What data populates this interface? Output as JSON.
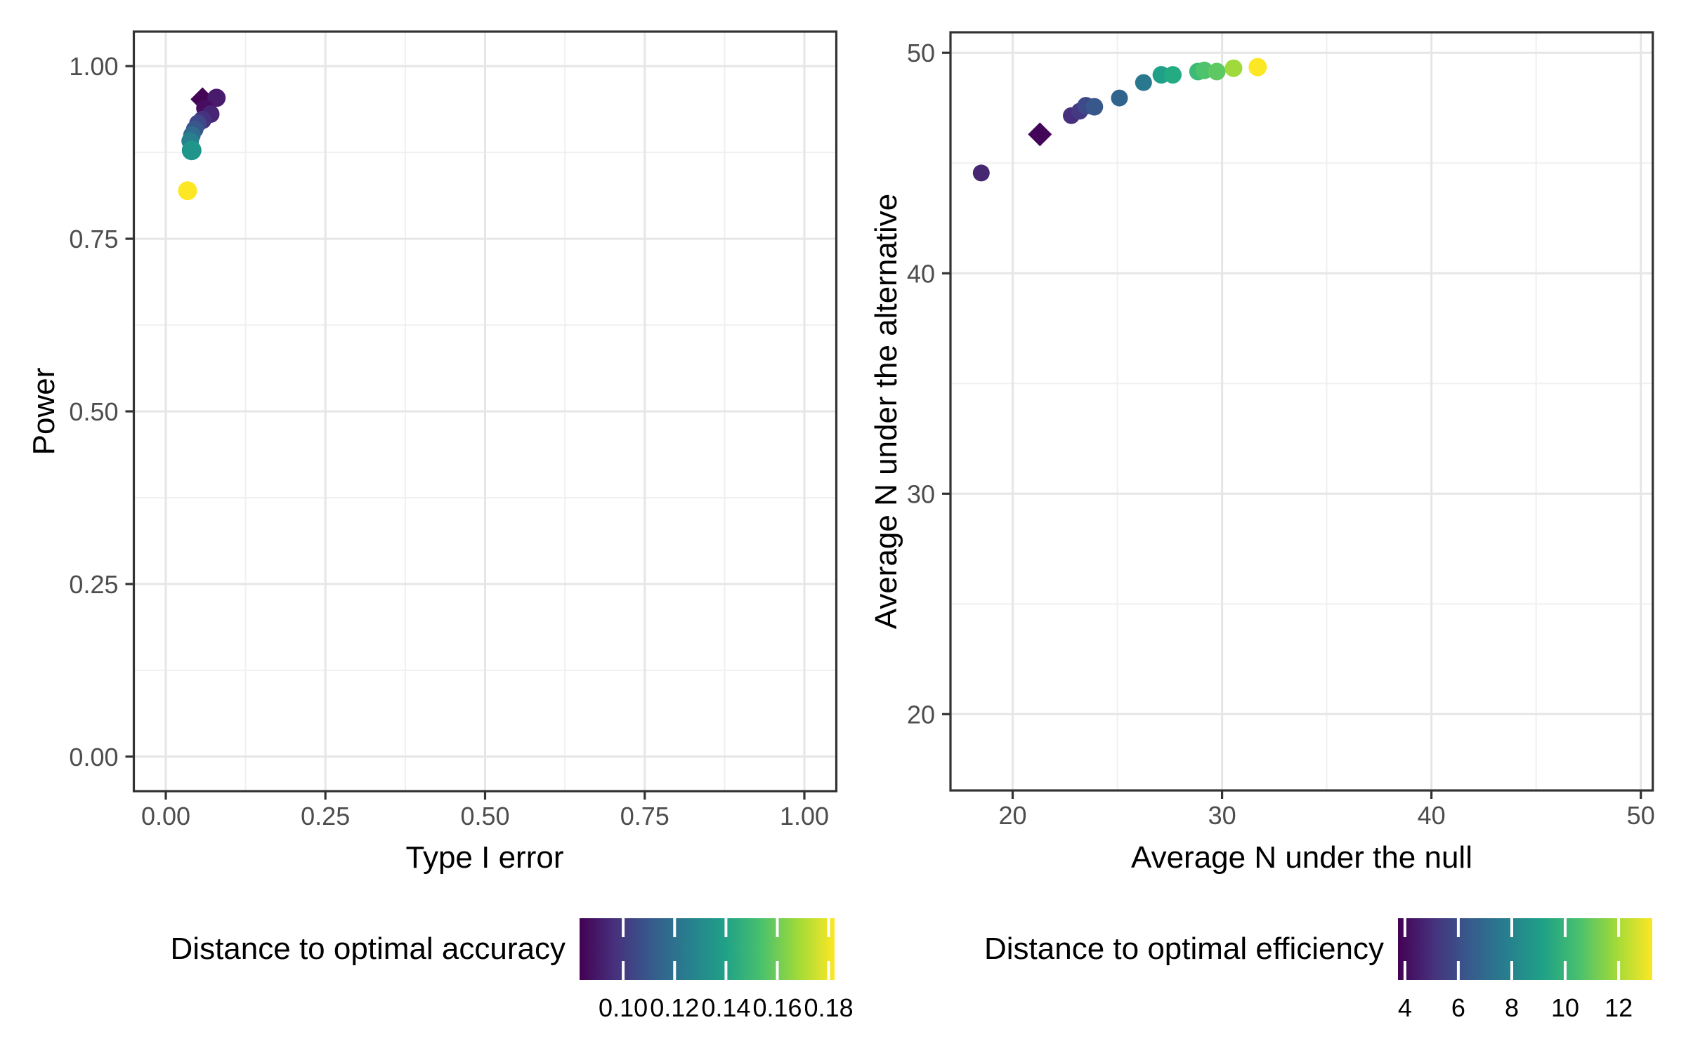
{
  "styles": {
    "background": "#ffffff",
    "grid_major": "#e6e6e6",
    "grid_minor": "#f0f0f0",
    "panel_border": "#333333",
    "tick_color": "#333333",
    "tick_label_color": "#4d4d4d",
    "axis_title_color": "#000000",
    "legend_label_color": "#000000",
    "viridis": [
      "#440154",
      "#46327e",
      "#365c8d",
      "#277f8e",
      "#1fa187",
      "#4ac16d",
      "#a0da39",
      "#fde725"
    ]
  },
  "chart_data": [
    {
      "type": "scatter",
      "panel": "left",
      "xlabel": "Type I error",
      "ylabel": "Power",
      "xlim": [
        -0.05,
        1.05
      ],
      "ylim": [
        -0.05,
        1.05
      ],
      "grid": true,
      "x_ticks": {
        "values": [
          0,
          0.25,
          0.5,
          0.75,
          1.0
        ],
        "labels": [
          "0.00",
          "0.25",
          "0.50",
          "0.75",
          "1.00"
        ]
      },
      "y_ticks": {
        "values": [
          0,
          0.25,
          0.5,
          0.75,
          1.0
        ],
        "labels": [
          "0.00",
          "0.25",
          "0.50",
          "0.75",
          "1.00"
        ]
      },
      "x_minor": [
        0.125,
        0.375,
        0.625,
        0.875
      ],
      "y_minor": [
        0.125,
        0.375,
        0.625,
        0.875
      ],
      "legend": {
        "title": "Distance to optimal accuracy",
        "position": "bottom",
        "range": [
          0.083,
          0.1823
        ],
        "tick_values": [
          0.1,
          0.12,
          0.14,
          0.16,
          0.18
        ],
        "tick_labels": [
          "0.10",
          "0.12",
          "0.14",
          "0.16",
          "0.18"
        ]
      },
      "points": [
        {
          "x": 0.0575,
          "y": 0.952,
          "shape": "diamond",
          "color": "#440556",
          "r": 17
        },
        {
          "x": 0.0795,
          "y": 0.954,
          "shape": "circle",
          "color": "#481b6d",
          "r": 13
        },
        {
          "x": 0.0613,
          "y": 0.939,
          "shape": "circle",
          "color": "#470d60",
          "r": 12.5
        },
        {
          "x": 0.0704,
          "y": 0.9305,
          "shape": "circle",
          "color": "#482475",
          "r": 12.5
        },
        {
          "x": 0.0575,
          "y": 0.922,
          "shape": "circle",
          "color": "#46327e",
          "r": 13
        },
        {
          "x": 0.0503,
          "y": 0.917,
          "shape": "circle",
          "color": "#3f4889",
          "r": 12.5
        },
        {
          "x": 0.0454,
          "y": 0.9085,
          "shape": "circle",
          "color": "#38588c",
          "r": 12.5
        },
        {
          "x": 0.041,
          "y": 0.9,
          "shape": "circle",
          "color": "#2f6c8e",
          "r": 12.5
        },
        {
          "x": 0.0382,
          "y": 0.8915,
          "shape": "circle",
          "color": "#27808e",
          "r": 12.5
        },
        {
          "x": 0.0405,
          "y": 0.878,
          "shape": "circle",
          "color": "#1f958b",
          "r": 14
        },
        {
          "x": 0.0341,
          "y": 0.8195,
          "shape": "circle",
          "color": "#fde725",
          "r": 13.5
        }
      ]
    },
    {
      "type": "scatter",
      "panel": "right",
      "xlabel": "Average N under the null",
      "ylabel": "Average N under the alternative",
      "xlim": [
        17.03,
        50.57
      ],
      "ylim": [
        16.54,
        50.93
      ],
      "grid": true,
      "x_ticks": {
        "values": [
          20,
          30,
          40,
          50
        ],
        "labels": [
          "20",
          "30",
          "40",
          "50"
        ]
      },
      "y_ticks": {
        "values": [
          20,
          30,
          40,
          50
        ],
        "labels": [
          "20",
          "30",
          "40",
          "50"
        ]
      },
      "x_minor": [
        25,
        35,
        45
      ],
      "y_minor": [
        25,
        35,
        45
      ],
      "legend": {
        "title": "Distance to optimal efficiency",
        "position": "bottom",
        "range": [
          3.74,
          13.26
        ],
        "tick_values": [
          4,
          6,
          8,
          10,
          12
        ],
        "tick_labels": [
          "4",
          "6",
          "8",
          "10",
          "12"
        ]
      },
      "points": [
        {
          "x": 18.5,
          "y": 44.55,
          "shape": "circle",
          "color": "#45286f",
          "r": 12
        },
        {
          "x": 21.3,
          "y": 46.3,
          "shape": "diamond",
          "color": "#430558",
          "r": 17
        },
        {
          "x": 22.8,
          "y": 47.15,
          "shape": "circle",
          "color": "#472f7d",
          "r": 12
        },
        {
          "x": 23.2,
          "y": 47.35,
          "shape": "circle",
          "color": "#443983",
          "r": 12
        },
        {
          "x": 23.5,
          "y": 47.6,
          "shape": "circle",
          "color": "#3e4989",
          "r": 12.5
        },
        {
          "x": 23.9,
          "y": 47.55,
          "shape": "circle",
          "color": "#38588c",
          "r": 12.5
        },
        {
          "x": 25.1,
          "y": 47.95,
          "shape": "circle",
          "color": "#31648d",
          "r": 12
        },
        {
          "x": 26.25,
          "y": 48.65,
          "shape": "circle",
          "color": "#2a788e",
          "r": 12
        },
        {
          "x": 27.1,
          "y": 49.0,
          "shape": "circle",
          "color": "#20a187",
          "r": 12.5
        },
        {
          "x": 27.65,
          "y": 49.0,
          "shape": "circle",
          "color": "#25ab82",
          "r": 12.5
        },
        {
          "x": 28.85,
          "y": 49.15,
          "shape": "circle",
          "color": "#3bbb75",
          "r": 12.5
        },
        {
          "x": 29.15,
          "y": 49.2,
          "shape": "circle",
          "color": "#4ec36b",
          "r": 12.5
        },
        {
          "x": 29.75,
          "y": 49.15,
          "shape": "circle",
          "color": "#5ec962",
          "r": 12.5
        },
        {
          "x": 30.55,
          "y": 49.3,
          "shape": "circle",
          "color": "#9fda3a",
          "r": 12.5
        },
        {
          "x": 31.7,
          "y": 49.35,
          "shape": "circle",
          "color": "#fbe723",
          "r": 13
        }
      ]
    }
  ]
}
